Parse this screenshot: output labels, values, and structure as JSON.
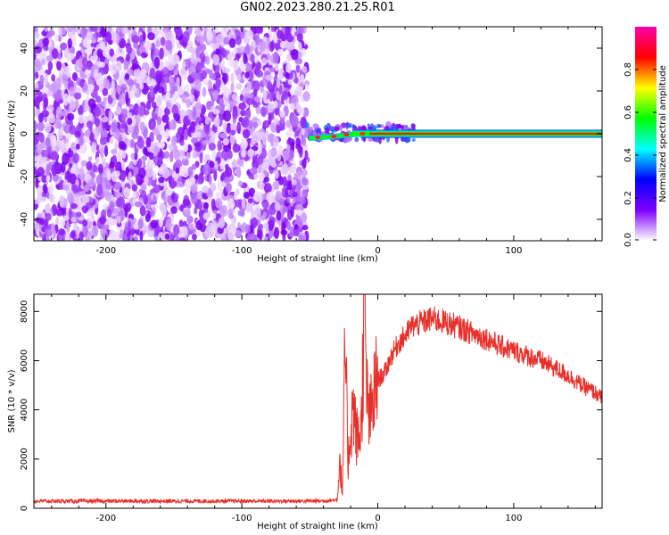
{
  "title": "GN02.2023.280.21.25.R01",
  "chart_data": [
    {
      "type": "heatmap",
      "xlabel": "Height of straight line (km)",
      "ylabel": "Frequency (Hz)",
      "xlim": [
        -253,
        165
      ],
      "ylim": [
        -50,
        50
      ],
      "x_ticks": [
        -200,
        -100,
        0,
        100
      ],
      "y_ticks": [
        -40,
        -20,
        0,
        20,
        40
      ],
      "noise_region_x": [
        -253,
        -52
      ],
      "signal_band_center_hz": 0,
      "signal_onset_km": -52,
      "colorbar": {
        "label": "Normalized spectral amplitude",
        "range": [
          0,
          1
        ],
        "ticks": [
          "0.0",
          "0.2",
          "0.4",
          "0.6",
          "0.8"
        ],
        "colormap": [
          "#ffffff",
          "#7f00ff",
          "#0000ff",
          "#00ffff",
          "#00ff00",
          "#ffff00",
          "#ff0000",
          "#ff00aa"
        ]
      },
      "grid": false
    },
    {
      "type": "line",
      "xlabel": "Height of straight line (km)",
      "ylabel": "SNR (10 * v/v)",
      "xlim": [
        -253,
        165
      ],
      "ylim": [
        0,
        8700
      ],
      "x_ticks": [
        -200,
        -100,
        0,
        100
      ],
      "y_ticks": [
        0,
        2000,
        4000,
        6000,
        8000
      ],
      "color": "#e8302a",
      "grid": false,
      "series": [
        {
          "x": [
            -253,
            -200,
            -150,
            -100,
            -60,
            -40,
            -30,
            -28,
            -26,
            -24,
            -22,
            -20,
            -18,
            -16,
            -14,
            -12,
            -10,
            -8,
            -6,
            -4,
            -2,
            0,
            5,
            10,
            15,
            20,
            25,
            30,
            35,
            40,
            50,
            60,
            70,
            80,
            90,
            100,
            110,
            120,
            130,
            140,
            150,
            160,
            165
          ],
          "y": [
            250,
            250,
            250,
            250,
            250,
            260,
            300,
            2000,
            500,
            6700,
            1800,
            3200,
            4200,
            3000,
            2800,
            3500,
            8300,
            4500,
            3500,
            4200,
            4800,
            5200,
            5500,
            6200,
            6700,
            7000,
            7400,
            7500,
            7600,
            7700,
            7550,
            7350,
            7100,
            6900,
            6600,
            6400,
            6200,
            6000,
            5700,
            5400,
            5000,
            4700,
            4450
          ]
        }
      ]
    }
  ]
}
